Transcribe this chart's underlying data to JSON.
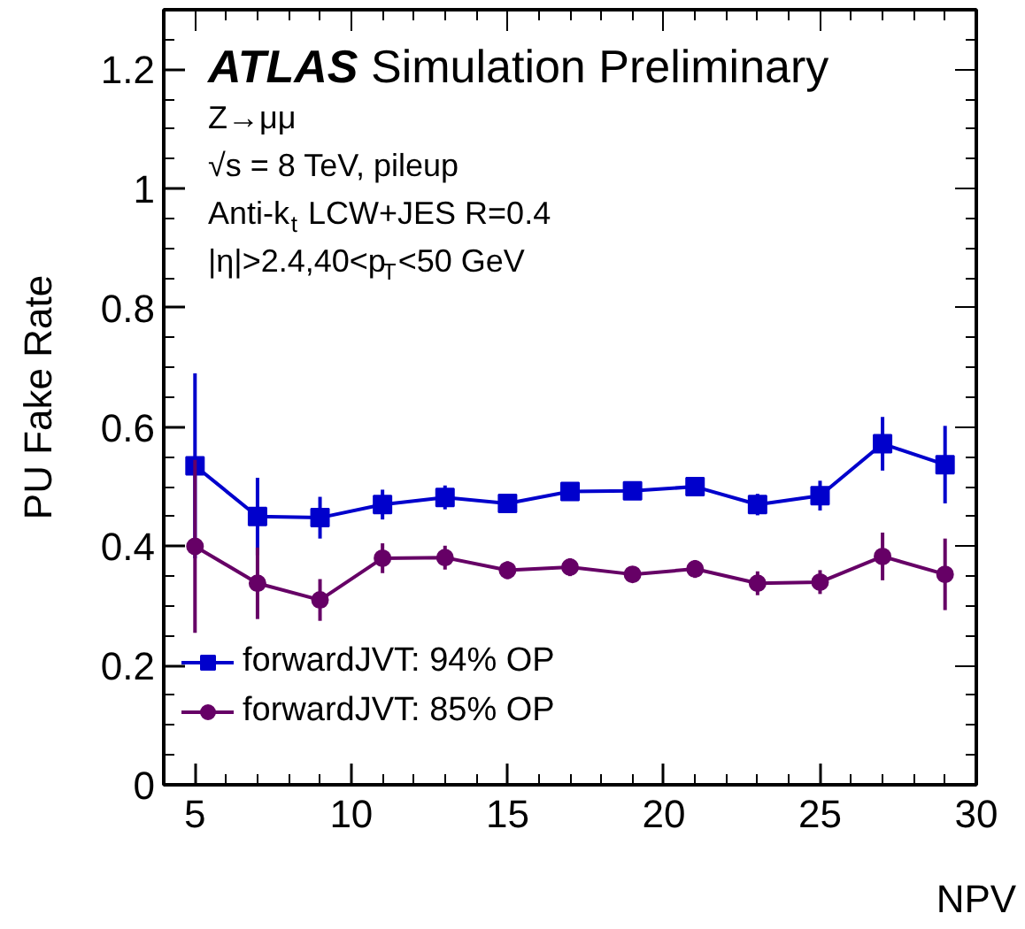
{
  "chart_data": {
    "type": "line",
    "xlabel": "NPV",
    "ylabel": "PU Fake Rate",
    "title": "ATLAS Simulation Preliminary",
    "annotations": [
      "Z→μμ",
      "√s = 8 TeV, pileup",
      "Anti-k$_{t}$ LCW+JES R=0.4",
      "|η|>2.4,40<p$_{T}$<50 GeV"
    ],
    "x": [
      5,
      7,
      9,
      11,
      13,
      15,
      17,
      19,
      21,
      23,
      25,
      27,
      29
    ],
    "series": [
      {
        "name": "forwardJVT: 94% OP",
        "color": "#0000cc",
        "marker": "square",
        "values": [
          0.535,
          0.45,
          0.448,
          0.47,
          0.482,
          0.472,
          0.492,
          0.493,
          0.5,
          0.47,
          0.485,
          0.572,
          0.537
        ],
        "errors": [
          0.155,
          0.065,
          0.035,
          0.025,
          0.02,
          0.015,
          0.012,
          0.012,
          0.015,
          0.018,
          0.025,
          0.045,
          0.065
        ]
      },
      {
        "name": "forwardJVT: 85% OP",
        "color": "#660066",
        "marker": "circle",
        "values": [
          0.4,
          0.338,
          0.31,
          0.38,
          0.381,
          0.36,
          0.365,
          0.353,
          0.362,
          0.338,
          0.34,
          0.383,
          0.353
        ],
        "errors": [
          0.145,
          0.06,
          0.035,
          0.025,
          0.02,
          0.015,
          0.015,
          0.012,
          0.015,
          0.02,
          0.02,
          0.04,
          0.06
        ]
      }
    ],
    "xlim": [
      4,
      30
    ],
    "ylim": [
      0,
      1.3
    ],
    "xticks": [
      5,
      10,
      15,
      20,
      25,
      30
    ],
    "yticks": [
      0,
      0.2,
      0.4,
      0.6,
      0.8,
      1,
      1.2
    ],
    "grid": false,
    "legend": "bottom left",
    "line_style": "solid"
  }
}
